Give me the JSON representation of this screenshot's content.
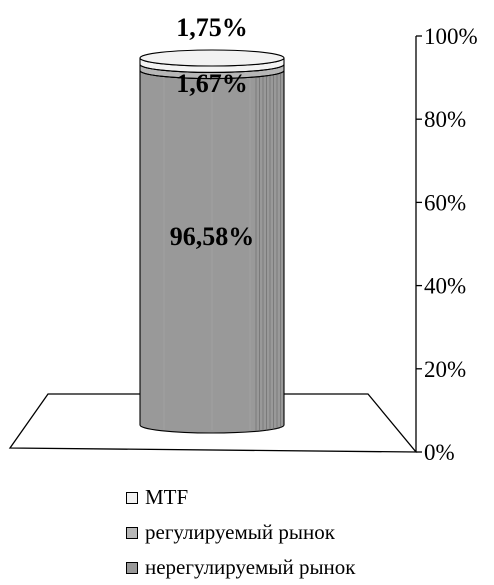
{
  "chart_data": {
    "type": "bar",
    "subtype": "stacked-100-cylinder-3d",
    "categories": [
      ""
    ],
    "series": [
      {
        "name": "нерегулируемый рынок",
        "values": [
          96.58
        ],
        "label": "96,58%",
        "color": "#999999"
      },
      {
        "name": "регулируемый рынок",
        "values": [
          1.67
        ],
        "label": "1,67%",
        "color": "#b7b7b7"
      },
      {
        "name": "MTF",
        "values": [
          1.75
        ],
        "label": "1,75%",
        "color": "#f2f2f2"
      }
    ],
    "y_ticks": [
      {
        "value": 0,
        "label": "0%"
      },
      {
        "value": 20,
        "label": "20%"
      },
      {
        "value": 40,
        "label": "40%"
      },
      {
        "value": 60,
        "label": "60%"
      },
      {
        "value": 80,
        "label": "80%"
      },
      {
        "value": 100,
        "label": "100%"
      }
    ],
    "ylim": [
      0,
      100
    ],
    "y_axis_side": "right",
    "grid": false,
    "legend_position": "bottom",
    "legend_order": [
      "MTF",
      "регулируемый рынок",
      "нерегулируемый рынок"
    ]
  }
}
